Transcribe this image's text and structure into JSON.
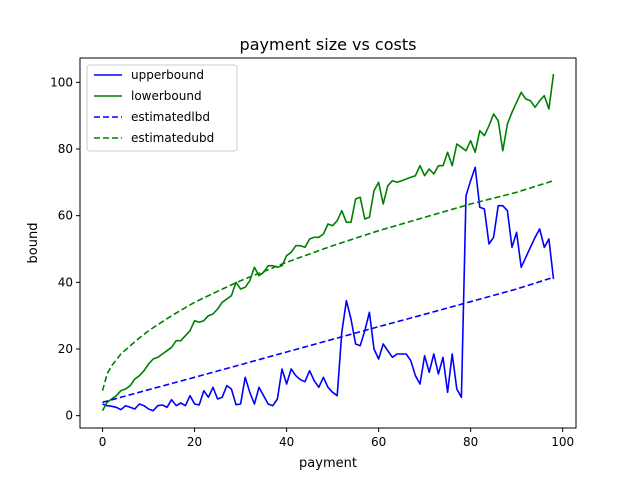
{
  "chart_data": {
    "type": "line",
    "title": "payment size vs costs",
    "xlabel": "payment",
    "ylabel": "bound",
    "xlim": [
      -4.9,
      102.9
    ],
    "ylim": [
      -3.7,
      107.3
    ],
    "xticks": [
      0,
      20,
      40,
      60,
      80,
      100
    ],
    "yticks": [
      0,
      20,
      40,
      60,
      80,
      100
    ],
    "grid": false,
    "legend_position": "top-left",
    "series": [
      {
        "name": "upperbound",
        "style": "solid",
        "color": "#0000ff",
        "x": [
          0,
          1,
          2,
          3,
          4,
          5,
          6,
          7,
          8,
          9,
          10,
          11,
          12,
          13,
          14,
          15,
          16,
          17,
          18,
          19,
          20,
          21,
          22,
          23,
          24,
          25,
          26,
          27,
          28,
          29,
          30,
          31,
          32,
          33,
          34,
          35,
          36,
          37,
          38,
          39,
          40,
          41,
          42,
          43,
          44,
          45,
          46,
          47,
          48,
          49,
          50,
          51,
          52,
          53,
          54,
          55,
          56,
          57,
          58,
          59,
          60,
          61,
          62,
          63,
          64,
          65,
          66,
          67,
          68,
          69,
          70,
          71,
          72,
          73,
          74,
          75,
          76,
          77,
          78,
          79,
          80,
          81,
          82,
          83,
          84,
          85,
          86,
          87,
          88,
          89,
          90,
          91,
          92,
          93,
          94,
          95,
          96,
          97,
          98
        ],
        "y": [
          3.5,
          3.0,
          2.8,
          2.5,
          1.8,
          3.0,
          2.5,
          2.0,
          3.5,
          3.0,
          2.0,
          1.5,
          3.0,
          3.2,
          2.5,
          4.8,
          3.0,
          3.8,
          3.0,
          6.0,
          3.5,
          3.2,
          7.5,
          5.5,
          8.5,
          5.0,
          5.5,
          9.0,
          8.0,
          3.3,
          3.5,
          11.5,
          7.0,
          3.5,
          8.5,
          6.0,
          3.5,
          3.0,
          5.0,
          14.0,
          9.5,
          14.0,
          12.0,
          10.8,
          10.2,
          13.5,
          10.5,
          8.5,
          11.5,
          8.5,
          7.0,
          6.0,
          25.0,
          34.5,
          29.0,
          21.5,
          21.0,
          25.5,
          31.0,
          20.0,
          17.0,
          21.5,
          19.5,
          17.5,
          18.5,
          18.5,
          18.5,
          16.5,
          12.0,
          9.5,
          18.0,
          13.0,
          18.5,
          12.5,
          17.5,
          7.0,
          18.5,
          8.0,
          5.5,
          66.0,
          70.5,
          74.5,
          62.5,
          62.0,
          51.5,
          53.5,
          63.0,
          63.0,
          61.5,
          50.5,
          55.0,
          44.5,
          47.5,
          50.5,
          53.5,
          56.0,
          50.5,
          53.0,
          41.0
        ]
      },
      {
        "name": "lowerbound",
        "style": "solid",
        "color": "#008000",
        "x": [
          0,
          1,
          2,
          3,
          4,
          5,
          6,
          7,
          8,
          9,
          10,
          11,
          12,
          13,
          14,
          15,
          16,
          17,
          18,
          19,
          20,
          21,
          22,
          23,
          24,
          25,
          26,
          27,
          28,
          29,
          30,
          31,
          32,
          33,
          34,
          35,
          36,
          37,
          38,
          39,
          40,
          41,
          42,
          43,
          44,
          45,
          46,
          47,
          48,
          49,
          50,
          51,
          52,
          53,
          54,
          55,
          56,
          57,
          58,
          59,
          60,
          61,
          62,
          63,
          64,
          65,
          66,
          67,
          68,
          69,
          70,
          71,
          72,
          73,
          74,
          75,
          76,
          77,
          78,
          79,
          80,
          81,
          82,
          83,
          84,
          85,
          86,
          87,
          88,
          89,
          90,
          91,
          92,
          93,
          94,
          95,
          96,
          97,
          98
        ],
        "y": [
          1.5,
          4.0,
          5.0,
          6.0,
          7.5,
          8.0,
          9.0,
          11.0,
          12.0,
          13.5,
          15.5,
          17.0,
          17.5,
          18.5,
          19.5,
          20.5,
          22.5,
          22.5,
          24.0,
          25.5,
          28.5,
          28.0,
          28.5,
          30.0,
          30.5,
          32.0,
          34.0,
          35.0,
          36.0,
          40.0,
          38.0,
          38.5,
          40.5,
          44.5,
          42.0,
          43.0,
          45.0,
          45.0,
          44.5,
          45.0,
          48.0,
          49.0,
          51.0,
          51.0,
          50.5,
          53.0,
          53.5,
          53.5,
          54.5,
          57.5,
          57.0,
          58.5,
          61.5,
          58.0,
          58.0,
          65.0,
          65.5,
          59.0,
          59.5,
          67.5,
          70.0,
          63.5,
          69.0,
          70.5,
          70.0,
          70.5,
          71.0,
          71.5,
          72.0,
          75.0,
          72.0,
          74.0,
          72.5,
          75.0,
          75.0,
          79.0,
          75.0,
          81.5,
          80.5,
          79.5,
          82.5,
          79.0,
          85.5,
          84.0,
          87.0,
          90.5,
          88.5,
          79.5,
          87.5,
          91.0,
          94.0,
          97.0,
          95.0,
          94.5,
          92.5,
          94.5,
          96.0,
          92.0,
          102.5
        ]
      },
      {
        "name": "estimatedlbd",
        "style": "dashed",
        "color": "#0000ff",
        "formula_hint": "linear",
        "x": [
          0,
          10,
          20,
          30,
          40,
          50,
          60,
          70,
          80,
          90,
          98
        ],
        "y": [
          4.0,
          7.8,
          11.5,
          15.3,
          19.1,
          22.9,
          26.7,
          30.4,
          34.2,
          38.0,
          41.5
        ]
      },
      {
        "name": "estimatedubd",
        "style": "dashed",
        "color": "#008000",
        "x": [
          0,
          1,
          2,
          4,
          6,
          8,
          10,
          15,
          20,
          25,
          30,
          40,
          50,
          60,
          70,
          80,
          90,
          98
        ],
        "y": [
          7.5,
          12.5,
          15.0,
          18.5,
          21.0,
          23.3,
          25.5,
          30.0,
          34.0,
          37.3,
          40.5,
          46.0,
          51.0,
          55.5,
          59.5,
          63.5,
          67.0,
          70.5
        ]
      }
    ]
  }
}
